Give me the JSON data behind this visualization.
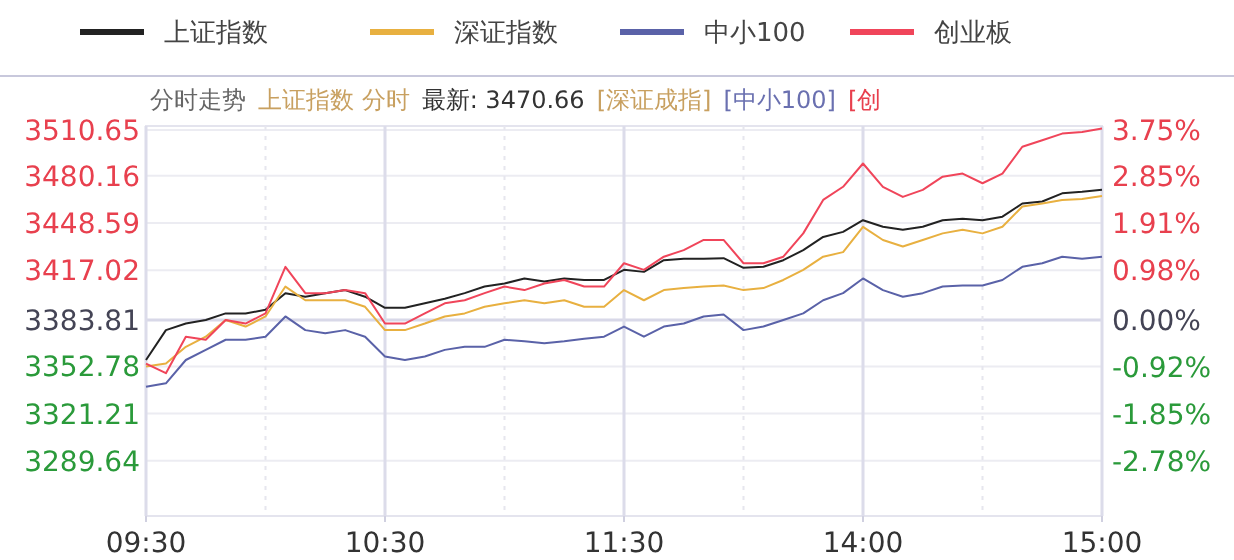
{
  "chart_data": {
    "type": "line",
    "annotations": [
      "分时走势",
      "上证指数 分时",
      "最新: 3470.66",
      "[深证成指]",
      "[中小100]",
      "[创"
    ],
    "categories": [
      "09:30",
      null,
      null,
      null,
      null,
      null,
      null,
      null,
      null,
      null,
      null,
      null,
      "10:30",
      null,
      null,
      null,
      null,
      null,
      null,
      null,
      null,
      null,
      null,
      null,
      "11:30",
      null,
      null,
      null,
      null,
      null,
      null,
      null,
      null,
      null,
      null,
      null,
      "14:00",
      null,
      null,
      null,
      null,
      null,
      null,
      null,
      null,
      null,
      null,
      null,
      "15:00"
    ],
    "series": [
      {
        "name": "上证指数",
        "color": "#222222",
        "axis": "y2",
        "values": [
          -0.79,
          -0.2,
          -0.07,
          0,
          0.13,
          0.13,
          0.2,
          0.53,
          0.46,
          0.53,
          0.59,
          0.46,
          0.24,
          0.24,
          0.33,
          0.42,
          0.53,
          0.66,
          0.72,
          0.82,
          0.76,
          0.82,
          0.79,
          0.79,
          0.99,
          0.95,
          1.18,
          1.21,
          1.21,
          1.22,
          1.03,
          1.05,
          1.18,
          1.38,
          1.64,
          1.74,
          1.97,
          1.84,
          1.78,
          1.84,
          1.97,
          2.0,
          1.97,
          2.04,
          2.3,
          2.34,
          2.5,
          2.53,
          2.57
        ]
      },
      {
        "name": "深证指数",
        "color": "#e8b040",
        "axis": "y2",
        "values": [
          -0.92,
          -0.86,
          -0.53,
          -0.33,
          0,
          -0.13,
          0.07,
          0.66,
          0.39,
          0.39,
          0.39,
          0.26,
          -0.2,
          -0.2,
          -0.07,
          0.07,
          0.13,
          0.26,
          0.33,
          0.39,
          0.33,
          0.39,
          0.26,
          0.26,
          0.59,
          0.39,
          0.59,
          0.63,
          0.66,
          0.68,
          0.59,
          0.63,
          0.79,
          0.99,
          1.25,
          1.34,
          1.84,
          1.58,
          1.45,
          1.58,
          1.71,
          1.78,
          1.71,
          1.84,
          2.24,
          2.3,
          2.37,
          2.39,
          2.45
        ]
      },
      {
        "name": "中小100",
        "color": "#5a62a8",
        "axis": "y2",
        "values": [
          -1.32,
          -1.25,
          -0.79,
          -0.59,
          -0.39,
          -0.39,
          -0.33,
          0.07,
          -0.2,
          -0.26,
          -0.2,
          -0.33,
          -0.72,
          -0.79,
          -0.72,
          -0.59,
          -0.53,
          -0.53,
          -0.39,
          -0.42,
          -0.46,
          -0.42,
          -0.37,
          -0.33,
          -0.13,
          -0.33,
          -0.13,
          -0.07,
          0.07,
          0.11,
          -0.2,
          -0.13,
          0,
          0.13,
          0.39,
          0.53,
          0.82,
          0.59,
          0.46,
          0.53,
          0.66,
          0.68,
          0.68,
          0.79,
          1.05,
          1.12,
          1.25,
          1.21,
          1.25
        ]
      },
      {
        "name": "创业板",
        "color": "#f0455a",
        "axis": "y2",
        "values": [
          -0.86,
          -1.05,
          -0.33,
          -0.39,
          0,
          -0.07,
          0.13,
          1.05,
          0.53,
          0.53,
          0.59,
          0.53,
          -0.07,
          -0.07,
          0.13,
          0.33,
          0.39,
          0.53,
          0.66,
          0.59,
          0.72,
          0.79,
          0.66,
          0.66,
          1.12,
          0.99,
          1.25,
          1.38,
          1.58,
          1.58,
          1.12,
          1.12,
          1.25,
          1.71,
          2.37,
          2.63,
          3.09,
          2.63,
          2.43,
          2.57,
          2.83,
          2.89,
          2.7,
          2.89,
          3.42,
          3.55,
          3.68,
          3.71,
          3.78
        ]
      }
    ],
    "ylim": [
      3252.8,
      3513.4
    ],
    "yticks": [
      3289.64,
      3321.21,
      3352.78,
      3383.81,
      3417.02,
      3448.59,
      3480.16,
      3510.65
    ],
    "y2lim": [
      -3.87,
      3.83
    ],
    "y2ticks": [
      {
        "value": -2.78,
        "label": "-2.78%"
      },
      {
        "value": -1.85,
        "label": "-1.85%"
      },
      {
        "value": -0.92,
        "label": "-0.92%"
      },
      {
        "value": 0,
        "label": "0.00%"
      },
      {
        "value": 0.98,
        "label": "0.98%"
      },
      {
        "value": 1.91,
        "label": "1.91%"
      },
      {
        "value": 2.85,
        "label": "2.85%"
      },
      {
        "value": 3.75,
        "label": "3.75%"
      }
    ],
    "grid": true,
    "legend": "top",
    "line_style": "solid",
    "marker": "none"
  }
}
